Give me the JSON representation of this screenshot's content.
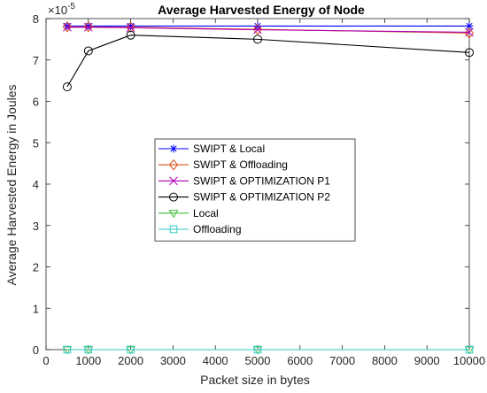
{
  "chart_data": {
    "type": "line",
    "title": "Average Harvested Energy of Node",
    "xlabel": "Packet size in bytes",
    "ylabel": "Average Harvested Energy in Joules",
    "y_exponent_label": "×10",
    "y_exponent_power": "-5",
    "xlim": [
      0,
      10000
    ],
    "ylim": [
      0,
      8
    ],
    "xticks": [
      0,
      1000,
      2000,
      3000,
      4000,
      5000,
      6000,
      7000,
      8000,
      9000,
      10000
    ],
    "yticks": [
      0,
      1,
      2,
      3,
      4,
      5,
      6,
      7,
      8
    ],
    "grid": false,
    "legend_position": "center-left",
    "x": [
      500,
      1000,
      2000,
      5000,
      10000
    ],
    "series": [
      {
        "name": "SWIPT & Local",
        "color": "#0000ff",
        "marker": "asterisk",
        "values": [
          7.82,
          7.82,
          7.82,
          7.82,
          7.82
        ]
      },
      {
        "name": "SWIPT & Offloading",
        "color": "#d95319",
        "marker": "diamond",
        "values": [
          7.8,
          7.8,
          7.79,
          7.74,
          7.65
        ]
      },
      {
        "name": "SWIPT & OPTIMIZATION P1",
        "color": "#b100b1",
        "marker": "x",
        "values": [
          7.79,
          7.79,
          7.78,
          7.73,
          7.67
        ]
      },
      {
        "name": "SWIPT & OPTIMIZATION P2",
        "color": "#000000",
        "marker": "circle",
        "values": [
          6.35,
          7.22,
          7.6,
          7.5,
          7.18
        ]
      },
      {
        "name": "Local",
        "color": "#3fbf3f",
        "marker": "triangle-down",
        "values": [
          0,
          0,
          0,
          0,
          0
        ]
      },
      {
        "name": "Offloading",
        "color": "#33c9c9",
        "marker": "square",
        "values": [
          0,
          0,
          0,
          0,
          0
        ]
      }
    ]
  }
}
